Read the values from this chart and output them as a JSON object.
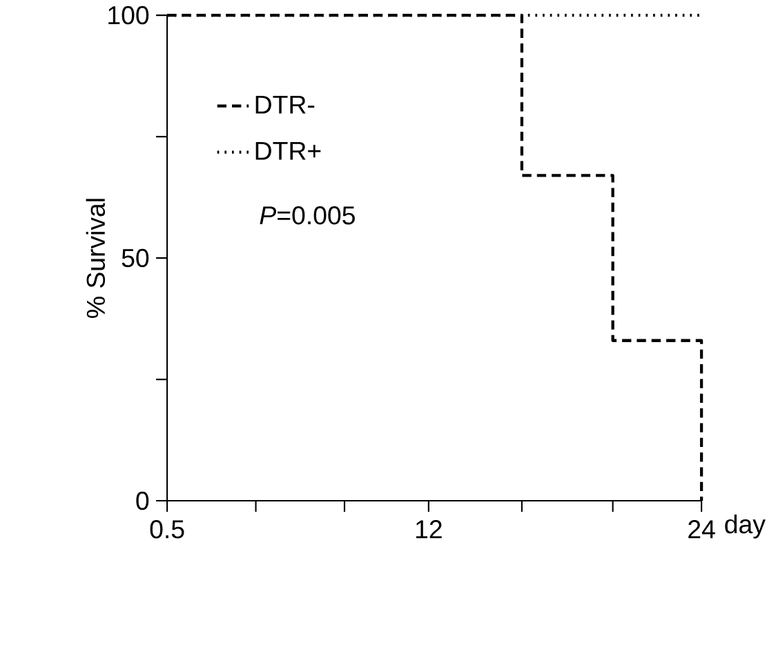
{
  "chart_data": {
    "type": "step",
    "ylabel": "% Survival",
    "xlabel": "day",
    "xlim": [
      0.5,
      24
    ],
    "xticks": [
      0.5,
      {
        "value": 4.4,
        "label": null
      },
      {
        "value": 8.3,
        "label": null
      },
      12,
      {
        "value": 16.1,
        "label": null
      },
      {
        "value": 20.1,
        "label": null
      },
      24
    ],
    "ylim": [
      0,
      100
    ],
    "yticks": [
      0,
      {
        "value": 25,
        "label": null
      },
      50,
      {
        "value": 75,
        "label": null
      },
      100
    ],
    "series": [
      {
        "name": "DTR-",
        "color": "#000000",
        "line_style": "dashed",
        "x": [
          0.5,
          16.1,
          20.1,
          24
        ],
        "values": [
          100,
          67,
          33,
          0
        ]
      },
      {
        "name": "DTR+",
        "color": "#000000",
        "line_style": "dotted",
        "x": [
          0.5,
          24
        ],
        "values": [
          100,
          100
        ]
      }
    ],
    "annotations": [
      "*P*=0.005"
    ],
    "legend": "top left",
    "grid": false
  }
}
